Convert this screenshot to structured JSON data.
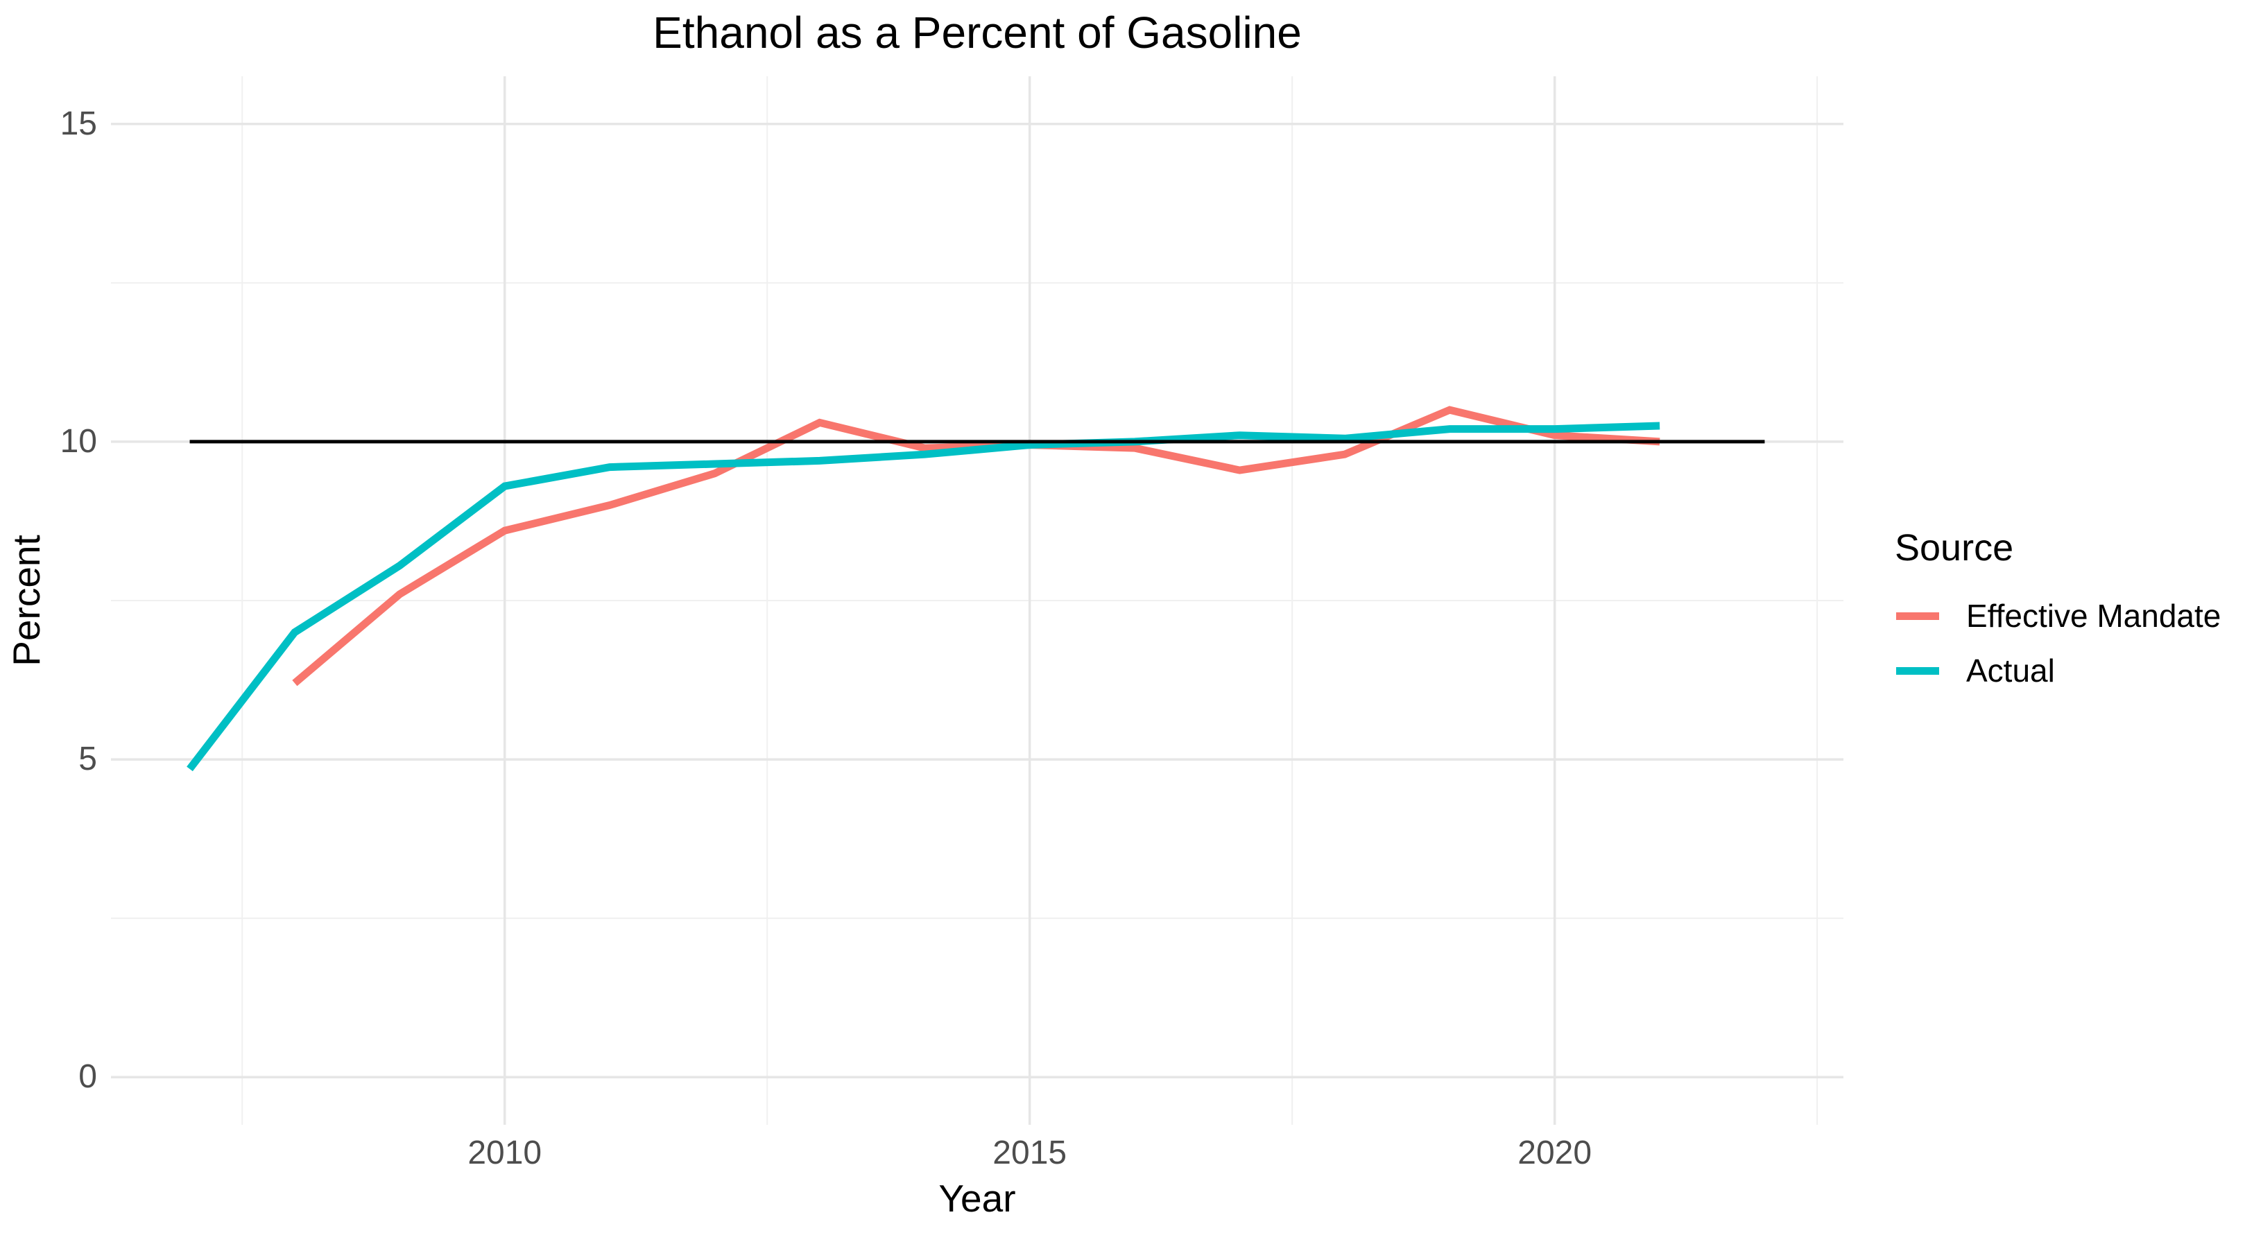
{
  "chart_data": {
    "type": "line",
    "title": "Ethanol as a Percent of Gasoline",
    "xlabel": "Year",
    "ylabel": "Percent",
    "xlim": [
      2006.25,
      2022.75
    ],
    "ylim": [
      -0.75,
      15.75
    ],
    "x_ticks": [
      2010,
      2015,
      2020
    ],
    "x_minor_ticks": [
      2007.5,
      2012.5,
      2017.5,
      2022.5
    ],
    "y_ticks": [
      0,
      5,
      10,
      15
    ],
    "y_minor_ticks": [
      2.5,
      7.5,
      12.5
    ],
    "grid": true,
    "background": "#ffffff",
    "grid_major_color": "#E6E6E6",
    "grid_minor_color": "#F0F0F0",
    "tick_label_color": "#4D4D4D",
    "reference_line": {
      "y": 10,
      "x_start": 2007,
      "x_end": 2022,
      "color": "#000000"
    },
    "legend": {
      "title": "Source",
      "position": "right"
    },
    "series": [
      {
        "name": "Effective Mandate",
        "color": "#F8766D",
        "x": [
          2008,
          2009,
          2010,
          2011,
          2012,
          2013,
          2014,
          2015,
          2016,
          2017,
          2018,
          2019,
          2020,
          2021
        ],
        "values": [
          6.2,
          7.6,
          8.6,
          9.0,
          9.5,
          10.3,
          9.9,
          9.95,
          9.9,
          9.55,
          9.8,
          10.5,
          10.1,
          10.0
        ]
      },
      {
        "name": "Actual",
        "color": "#00BFC4",
        "x": [
          2007,
          2008,
          2009,
          2010,
          2011,
          2012,
          2013,
          2014,
          2015,
          2016,
          2017,
          2018,
          2019,
          2020,
          2021
        ],
        "values": [
          4.85,
          7.0,
          8.05,
          9.3,
          9.6,
          9.65,
          9.7,
          9.8,
          9.95,
          10.0,
          10.1,
          10.05,
          10.2,
          10.2,
          10.25
        ]
      }
    ]
  }
}
